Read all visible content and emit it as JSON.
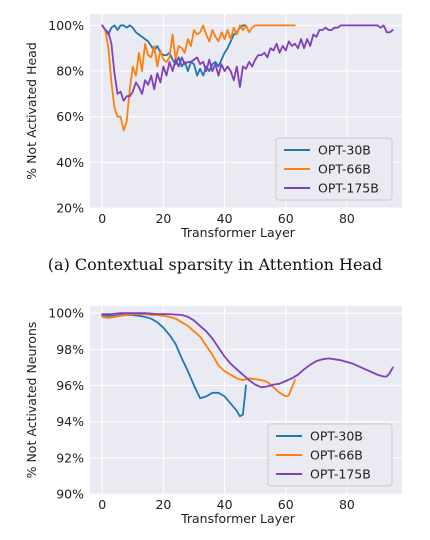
{
  "chart_data": [
    {
      "type": "line",
      "xlabel": "Transformer Layer",
      "ylabel": "% Not Activated Head",
      "xlim": [
        -4,
        98
      ],
      "ylim": [
        20,
        105
      ],
      "xticks": [
        0,
        20,
        40,
        60,
        80
      ],
      "yticks": [
        20,
        40,
        60,
        80,
        100
      ],
      "ytick_labels": [
        "20%",
        "40%",
        "60%",
        "80%",
        "100%"
      ],
      "grid": true,
      "legend_position": "bottom-right",
      "series": [
        {
          "name": "OPT-30B",
          "color": "#1f77b4",
          "x": [
            0,
            1,
            2,
            3,
            4,
            5,
            6,
            7,
            8,
            9,
            10,
            11,
            12,
            13,
            14,
            15,
            16,
            17,
            18,
            19,
            20,
            21,
            22,
            23,
            24,
            25,
            26,
            27,
            28,
            29,
            30,
            31,
            32,
            33,
            34,
            35,
            36,
            37,
            38,
            39,
            40,
            41,
            42,
            43,
            44,
            45,
            46,
            47
          ],
          "y": [
            100,
            98,
            96,
            99,
            100,
            98,
            100,
            100,
            99,
            100,
            99,
            97,
            96,
            95,
            94,
            93,
            91,
            89,
            91,
            88,
            87,
            87,
            88,
            85,
            83,
            86,
            82,
            84,
            80,
            84,
            83,
            78,
            81,
            78,
            82,
            80,
            83,
            84,
            82,
            85,
            88,
            90,
            93,
            96,
            97,
            99,
            100,
            100
          ]
        },
        {
          "name": "OPT-66B",
          "color": "#ff7f0e",
          "x": [
            0,
            1,
            2,
            3,
            4,
            5,
            6,
            7,
            8,
            9,
            10,
            11,
            12,
            13,
            14,
            15,
            16,
            17,
            18,
            19,
            20,
            21,
            22,
            23,
            24,
            25,
            26,
            27,
            28,
            29,
            30,
            31,
            32,
            33,
            34,
            35,
            36,
            37,
            38,
            39,
            40,
            41,
            42,
            43,
            44,
            45,
            46,
            47,
            48,
            49,
            50,
            51,
            52,
            53,
            54,
            55,
            56,
            57,
            58,
            59,
            60,
            61,
            62,
            63
          ],
          "y": [
            100,
            98,
            90,
            75,
            64,
            60,
            60,
            54,
            58,
            72,
            82,
            78,
            88,
            80,
            92,
            87,
            86,
            91,
            82,
            89,
            85,
            84,
            86,
            96,
            85,
            91,
            90,
            88,
            94,
            91,
            98,
            96,
            97,
            100,
            96,
            93,
            98,
            95,
            93,
            97,
            94,
            98,
            94,
            99,
            96,
            100,
            98,
            100,
            97,
            99,
            100,
            100,
            100,
            100,
            100,
            100,
            100,
            100,
            100,
            100,
            100,
            100,
            100,
            100
          ]
        },
        {
          "name": "OPT-175B",
          "color": "#7f3fbf",
          "x": [
            0,
            1,
            2,
            3,
            4,
            5,
            6,
            7,
            8,
            9,
            10,
            11,
            12,
            13,
            14,
            15,
            16,
            17,
            18,
            19,
            20,
            21,
            22,
            23,
            24,
            25,
            26,
            27,
            28,
            29,
            30,
            31,
            32,
            33,
            34,
            35,
            36,
            37,
            38,
            39,
            40,
            41,
            42,
            43,
            44,
            45,
            46,
            47,
            48,
            49,
            50,
            51,
            52,
            53,
            54,
            55,
            56,
            57,
            58,
            59,
            60,
            61,
            62,
            63,
            64,
            65,
            66,
            67,
            68,
            69,
            70,
            71,
            72,
            73,
            74,
            75,
            76,
            77,
            78,
            79,
            80,
            81,
            82,
            83,
            84,
            85,
            86,
            87,
            88,
            89,
            90,
            91,
            92,
            93,
            94,
            95
          ],
          "y": [
            100,
            98,
            97,
            92,
            79,
            70,
            71,
            67,
            69,
            69,
            71,
            75,
            73,
            70,
            76,
            74,
            78,
            72,
            79,
            75,
            82,
            78,
            84,
            80,
            85,
            82,
            86,
            83,
            84,
            84,
            85,
            86,
            83,
            84,
            80,
            85,
            80,
            83,
            78,
            83,
            80,
            82,
            80,
            76,
            82,
            73,
            82,
            81,
            84,
            82,
            85,
            87,
            87,
            88,
            86,
            90,
            89,
            92,
            88,
            91,
            89,
            93,
            91,
            92,
            90,
            94,
            90,
            94,
            91,
            96,
            95,
            98,
            98,
            99,
            98,
            98,
            99,
            99,
            100,
            100,
            100,
            100,
            100,
            100,
            100,
            100,
            100,
            100,
            100,
            100,
            100,
            99,
            100,
            97,
            97,
            98
          ]
        }
      ]
    },
    {
      "type": "line",
      "xlabel": "Transformer Layer",
      "ylabel": "% Not Activated Neurons",
      "xlim": [
        -4,
        98
      ],
      "ylim": [
        90,
        100.4
      ],
      "xticks": [
        0,
        20,
        40,
        60,
        80
      ],
      "yticks": [
        90,
        92,
        94,
        96,
        98,
        100
      ],
      "ytick_labels": [
        "90%",
        "92%",
        "94%",
        "96%",
        "98%",
        "100%"
      ],
      "grid": true,
      "legend_position": "bottom-right",
      "series": [
        {
          "name": "OPT-30B",
          "color": "#1f77b4",
          "x": [
            0,
            2,
            4,
            6,
            8,
            10,
            12,
            14,
            16,
            18,
            20,
            22,
            24,
            26,
            28,
            30,
            32,
            34,
            36,
            38,
            40,
            42,
            44,
            45,
            46,
            47
          ],
          "y": [
            99.9,
            99.85,
            99.85,
            99.9,
            99.9,
            99.9,
            99.85,
            99.8,
            99.7,
            99.5,
            99.2,
            98.8,
            98.3,
            97.5,
            96.8,
            96.0,
            95.3,
            95.4,
            95.6,
            95.6,
            95.4,
            95.0,
            94.6,
            94.3,
            94.4,
            96.0
          ]
        },
        {
          "name": "OPT-66B",
          "color": "#ff7f0e",
          "x": [
            0,
            2,
            4,
            6,
            8,
            10,
            12,
            14,
            16,
            18,
            20,
            22,
            24,
            26,
            28,
            30,
            32,
            34,
            36,
            38,
            40,
            42,
            44,
            46,
            48,
            50,
            52,
            54,
            56,
            58,
            60,
            61,
            62,
            63
          ],
          "y": [
            99.8,
            99.75,
            99.8,
            99.85,
            99.9,
            99.95,
            99.95,
            99.95,
            99.9,
            99.9,
            99.85,
            99.8,
            99.7,
            99.5,
            99.3,
            99.0,
            98.7,
            98.2,
            97.7,
            97.1,
            96.8,
            96.6,
            96.4,
            96.3,
            96.4,
            96.35,
            96.3,
            96.2,
            95.9,
            95.6,
            95.4,
            95.45,
            95.9,
            96.3
          ]
        },
        {
          "name": "OPT-175B",
          "color": "#7f3fbf",
          "x": [
            0,
            3,
            6,
            10,
            14,
            18,
            22,
            26,
            28,
            30,
            32,
            34,
            36,
            38,
            40,
            42,
            44,
            46,
            48,
            50,
            52,
            54,
            56,
            58,
            60,
            62,
            64,
            66,
            68,
            70,
            72,
            74,
            76,
            78,
            80,
            82,
            84,
            86,
            88,
            90,
            92,
            93,
            94,
            95
          ],
          "y": [
            99.95,
            99.95,
            100,
            100,
            100,
            99.95,
            99.95,
            99.9,
            99.8,
            99.6,
            99.3,
            99.0,
            98.6,
            98.1,
            97.6,
            97.2,
            96.9,
            96.6,
            96.3,
            96.05,
            95.9,
            95.95,
            96.05,
            96.1,
            96.25,
            96.4,
            96.6,
            96.9,
            97.15,
            97.35,
            97.45,
            97.5,
            97.45,
            97.4,
            97.3,
            97.2,
            97.05,
            96.9,
            96.75,
            96.6,
            96.5,
            96.5,
            96.7,
            97.0
          ]
        }
      ]
    }
  ],
  "captions": [
    "(a) Contextual sparsity in Attention Head"
  ]
}
